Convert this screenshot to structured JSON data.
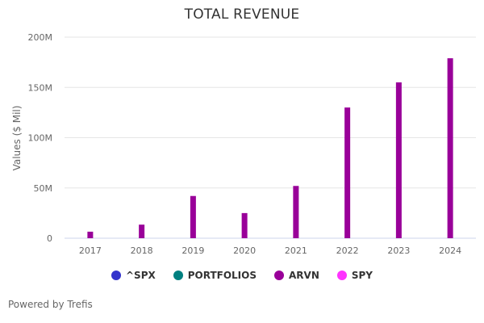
{
  "chart_data": {
    "type": "bar",
    "title": "TOTAL REVENUE",
    "xlabel": "",
    "ylabel": "Values ($ Mil)",
    "categories": [
      "2017",
      "2018",
      "2019",
      "2020",
      "2021",
      "2022",
      "2023",
      "2024"
    ],
    "ylim": [
      0,
      200
    ],
    "yticks": [
      0,
      50,
      100,
      150,
      200
    ],
    "ytick_labels": [
      "0",
      "50M",
      "100M",
      "150M",
      "200M"
    ],
    "grid": true,
    "series": [
      {
        "name": "ARVN",
        "color": "#990099",
        "values": [
          6.5,
          13.5,
          42,
          25,
          52,
          130,
          155,
          179
        ]
      }
    ],
    "legend_position": "bottom",
    "legend": [
      {
        "name": "^SPX",
        "color": "#3333cc"
      },
      {
        "name": "PORTFOLIOS",
        "color": "#008080"
      },
      {
        "name": "ARVN",
        "color": "#990099"
      },
      {
        "name": "SPY",
        "color": "#ff33ff"
      }
    ]
  },
  "footer": {
    "credit": "Powered by Trefis"
  }
}
